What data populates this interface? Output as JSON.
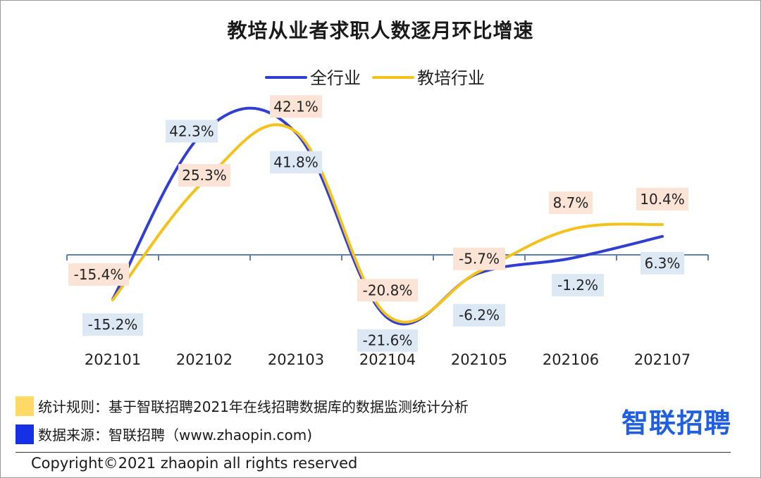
{
  "title": "教培从业者求职人数逐月环比增速",
  "chart_data": {
    "type": "line",
    "categories": [
      "202101",
      "202102",
      "202103",
      "202104",
      "202105",
      "202106",
      "202107"
    ],
    "series": [
      {
        "name": "全行业",
        "color": "#2f3fd1",
        "values": [
          -15.2,
          42.3,
          41.8,
          -21.6,
          -6.2,
          -1.2,
          6.3
        ],
        "labels": [
          "-15.2%",
          "42.3%",
          "41.8%",
          "-21.6%",
          "-6.2%",
          "-1.2%",
          "6.3%"
        ]
      },
      {
        "name": "教培行业",
        "color": "#f5c21b",
        "values": [
          -15.4,
          25.3,
          42.1,
          -20.8,
          -5.7,
          8.7,
          10.4
        ],
        "labels": [
          "-15.4%",
          "25.3%",
          "42.1%",
          "-20.8%",
          "-5.7%",
          "8.7%",
          "10.4%"
        ]
      }
    ],
    "ylim": [
      -28,
      52
    ],
    "grid": false,
    "legend": "top"
  },
  "footer": {
    "rule_text": "统计规则：基于智联招聘2021年在线招聘数据库的数据监测统计分析",
    "source_text": "数据来源：智联招聘（www.zhaopin.com)",
    "rule_color": "#ffd966",
    "source_color": "#1630e6"
  },
  "logo": "智联招聘",
  "copyright": "Copyright©2021 zhaopin all rights reserved"
}
